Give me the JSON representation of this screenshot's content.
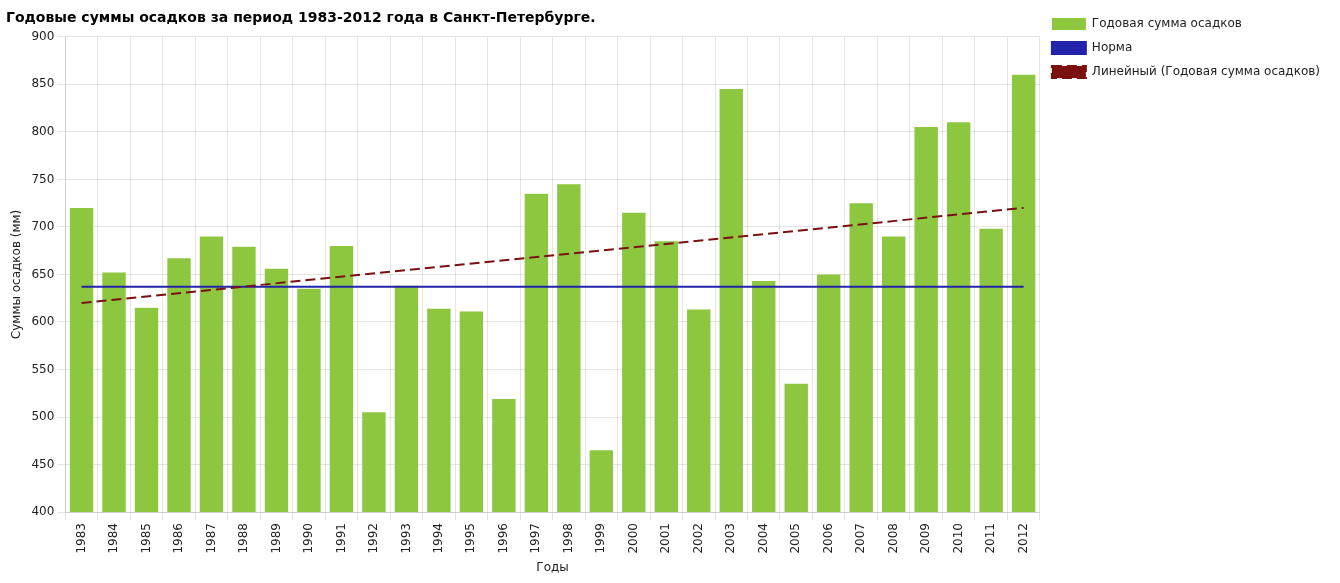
{
  "chart_data": {
    "type": "bar",
    "title": "Годовые суммы осадков за период 1983-2012 года в Санкт-Петербурге.",
    "x_label": "Годы",
    "y_label": "Суммы осадков (мм)",
    "categories": [
      "1983",
      "1984",
      "1985",
      "1986",
      "1987",
      "1988",
      "1989",
      "1990",
      "1991",
      "1992",
      "1993",
      "1994",
      "1995",
      "1996",
      "1997",
      "1998",
      "1999",
      "2000",
      "2001",
      "2002",
      "2003",
      "2004",
      "2005",
      "2006",
      "2007",
      "2008",
      "2009",
      "2010",
      "2011",
      "2012"
    ],
    "series": [
      {
        "name": "Годовая сумма осадков",
        "type": "bar",
        "color": "#8DC63F",
        "values": [
          720,
          652,
          615,
          667,
          690,
          679,
          656,
          635,
          680,
          505,
          638,
          614,
          611,
          519,
          735,
          745,
          465,
          715,
          685,
          613,
          845,
          643,
          535,
          650,
          725,
          690,
          805,
          810,
          698,
          860
        ]
      },
      {
        "name": "Норма",
        "type": "line",
        "color": "#2222AA",
        "line_style": "solid",
        "marker": "none",
        "values": [
          637,
          637,
          637,
          637,
          637,
          637,
          637,
          637,
          637,
          637,
          637,
          637,
          637,
          637,
          637,
          637,
          637,
          637,
          637,
          637,
          637,
          637,
          637,
          637,
          637,
          637,
          637,
          637,
          637,
          637
        ]
      },
      {
        "name": "Линейный (Годовая сумма осадков)",
        "type": "line",
        "color": "#7B1010",
        "line_style": "dashed",
        "marker": "none",
        "x": [
          "1983",
          "2012"
        ],
        "values": [
          620,
          720
        ]
      }
    ],
    "ylim": [
      400,
      900
    ],
    "yticks": [
      400,
      450,
      500,
      550,
      600,
      650,
      700,
      750,
      800,
      850,
      900
    ],
    "grid": true,
    "legend": "upper right"
  }
}
